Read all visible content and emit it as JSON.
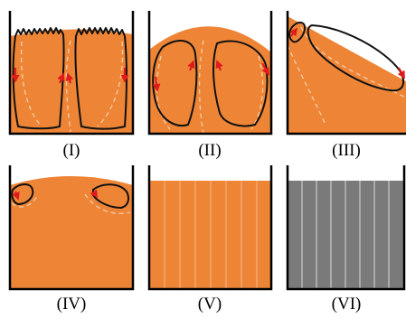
{
  "panels": [
    {
      "label": "(I)"
    },
    {
      "label": "(II)"
    },
    {
      "label": "(III)"
    },
    {
      "label": "(IV)"
    },
    {
      "label": "(V)"
    },
    {
      "label": "(VI)"
    }
  ],
  "colors": {
    "fluid": "#ee8536",
    "solid": "#7a7a7a",
    "wall": "#000000",
    "vortex": "#111111",
    "arrow": "#e11b1b",
    "dashed": "#f3c9a4",
    "striation": "#f6b888",
    "solid_lines": "#d9d9d9"
  }
}
